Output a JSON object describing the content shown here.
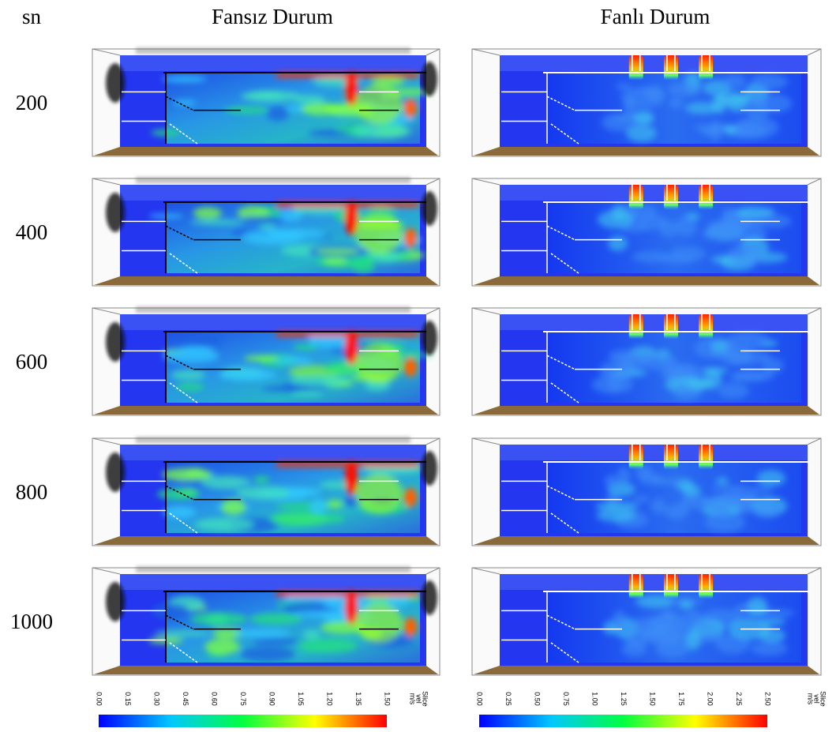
{
  "header": {
    "corner": "sn",
    "columns": [
      "Fansız Durum",
      "Fanlı Durum"
    ]
  },
  "rows": [
    "200",
    "400",
    "600",
    "800",
    "1000"
  ],
  "colorbars": [
    {
      "lim": [
        0,
        1.5
      ],
      "ticks": [
        {
          "value": 0,
          "label": "0.00"
        },
        {
          "value": 0.15,
          "label": "0.15"
        },
        {
          "value": 0.3,
          "label": "0.30"
        },
        {
          "value": 0.45,
          "label": "0.45"
        },
        {
          "value": 0.6,
          "label": "0.60"
        },
        {
          "value": 0.75,
          "label": "0.75"
        },
        {
          "value": 0.9,
          "label": "0.90"
        },
        {
          "value": 1.05,
          "label": "1.05"
        },
        {
          "value": 1.2,
          "label": "1.20"
        },
        {
          "value": 1.35,
          "label": "1.35"
        },
        {
          "value": 1.5,
          "label": "1.50"
        }
      ],
      "unit": [
        "Slice",
        "vel",
        "m/s"
      ]
    },
    {
      "lim": [
        0,
        2.5
      ],
      "ticks": [
        {
          "value": 0,
          "label": "0.00"
        },
        {
          "value": 0.25,
          "label": "0.25"
        },
        {
          "value": 0.5,
          "label": "0.50"
        },
        {
          "value": 0.75,
          "label": "0.75"
        },
        {
          "value": 1,
          "label": "1.00"
        },
        {
          "value": 1.25,
          "label": "1.25"
        },
        {
          "value": 1.5,
          "label": "1.50"
        },
        {
          "value": 1.75,
          "label": "1.75"
        },
        {
          "value": 2,
          "label": "2.00"
        },
        {
          "value": 2.25,
          "label": "2.25"
        },
        {
          "value": 2.5,
          "label": "2.50"
        }
      ],
      "unit": [
        "Slice",
        "vel",
        "m/s"
      ]
    }
  ]
}
